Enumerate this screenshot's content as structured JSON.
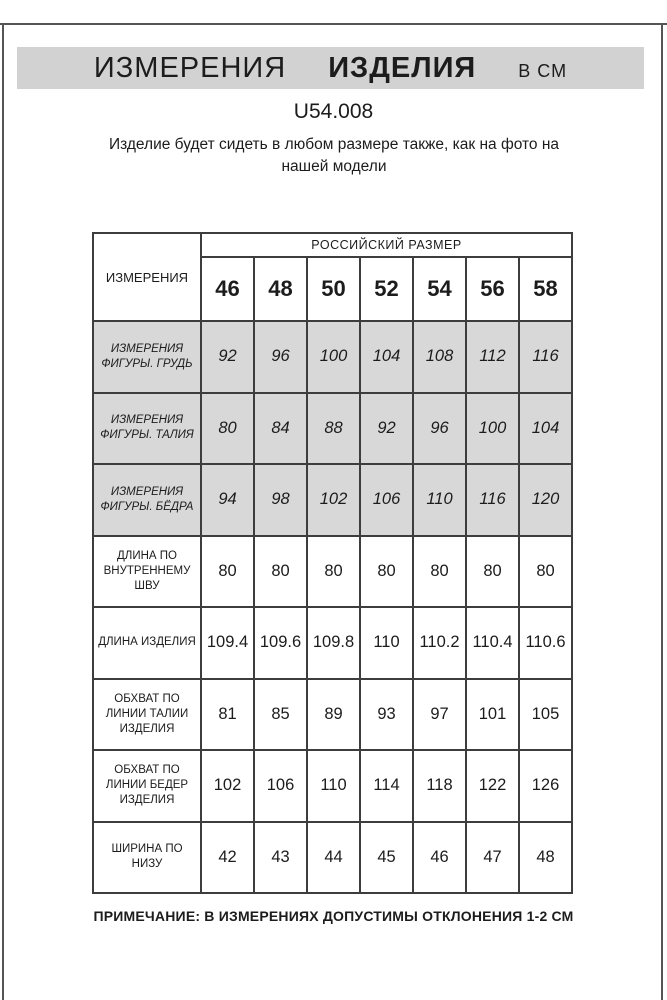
{
  "header": {
    "title_main": "ИЗМЕРЕНИЯ",
    "title_strong": "ИЗДЕЛИЯ",
    "title_units": "В СМ",
    "product_code": "U54.008",
    "subtitle": "Изделие будет сидеть в любом размере также, как на фото на нашей модели"
  },
  "table": {
    "corner_label": "ИЗМЕРЕНИЯ",
    "size_group_label": "РОССИЙСКИЙ РАЗМЕР",
    "sizes": [
      "46",
      "48",
      "50",
      "52",
      "54",
      "56",
      "58"
    ],
    "rows": [
      {
        "label": "ИЗМЕРЕНИЯ ФИГУРЫ. ГРУДЬ",
        "values": [
          "92",
          "96",
          "100",
          "104",
          "108",
          "112",
          "116"
        ],
        "highlight": true
      },
      {
        "label": "ИЗМЕРЕНИЯ ФИГУРЫ. ТАЛИЯ",
        "values": [
          "80",
          "84",
          "88",
          "92",
          "96",
          "100",
          "104"
        ],
        "highlight": true
      },
      {
        "label": "ИЗМЕРЕНИЯ ФИГУРЫ. БЁДРА",
        "values": [
          "94",
          "98",
          "102",
          "106",
          "110",
          "116",
          "120"
        ],
        "highlight": true
      },
      {
        "label": "ДЛИНА ПО ВНУТРЕННЕМУ ШВУ",
        "values": [
          "80",
          "80",
          "80",
          "80",
          "80",
          "80",
          "80"
        ],
        "highlight": false
      },
      {
        "label": "ДЛИНА ИЗДЕЛИЯ",
        "values": [
          "109.4",
          "109.6",
          "109.8",
          "110",
          "110.2",
          "110.4",
          "110.6"
        ],
        "highlight": false
      },
      {
        "label": "ОБХВАТ ПО ЛИНИИ ТАЛИИ ИЗДЕЛИЯ",
        "values": [
          "81",
          "85",
          "89",
          "93",
          "97",
          "101",
          "105"
        ],
        "highlight": false
      },
      {
        "label": "ОБХВАТ ПО ЛИНИИ БЕДЕР ИЗДЕЛИЯ",
        "values": [
          "102",
          "106",
          "110",
          "114",
          "118",
          "122",
          "126"
        ],
        "highlight": false
      },
      {
        "label": "ШИРИНА ПО НИЗУ",
        "values": [
          "42",
          "43",
          "44",
          "45",
          "46",
          "47",
          "48"
        ],
        "highlight": false
      }
    ]
  },
  "footer": {
    "note": "ПРИМЕЧАНИЕ: В ИЗМЕРЕНИЯХ ДОПУСТИМЫ ОТКЛОНЕНИЯ 1-2 СМ"
  },
  "colors": {
    "highlight_row_bg": "#d8d8d8",
    "title_bar_bg": "#d2d2d2",
    "table_border": "#3d3d3d",
    "frame_border": "#555555",
    "text": "#1c1c1c"
  }
}
